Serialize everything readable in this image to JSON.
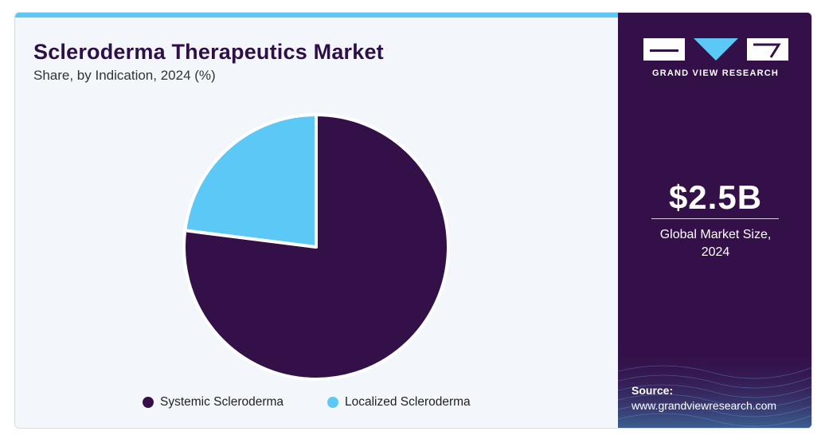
{
  "header": {
    "title": "Scleroderma Therapeutics Market",
    "subtitle": "Share, by Indication, 2024 (%)"
  },
  "chart_data": {
    "type": "pie",
    "categories": [
      "Systemic Scleroderma",
      "Localized Scleroderma"
    ],
    "values": [
      77,
      23
    ],
    "colors": [
      "#341049",
      "#5bc8f5"
    ],
    "title": "Scleroderma Therapeutics Market",
    "subtitle": "Share, by Indication, 2024 (%)",
    "legend": "bottom"
  },
  "legend": {
    "items": [
      {
        "label": "Systemic Scleroderma",
        "color": "#341049"
      },
      {
        "label": "Localized Scleroderma",
        "color": "#5bc8f5"
      }
    ]
  },
  "sidebar": {
    "brand": "GRAND VIEW RESEARCH",
    "market_value": "$2.5B",
    "market_label_line1": "Global Market Size,",
    "market_label_line2": "2024",
    "source_label": "Source:",
    "source_url": "www.grandviewresearch.com"
  },
  "colors": {
    "accent": "#5bc8f5",
    "brand_dark": "#341049",
    "background": "#f3f7fb"
  }
}
